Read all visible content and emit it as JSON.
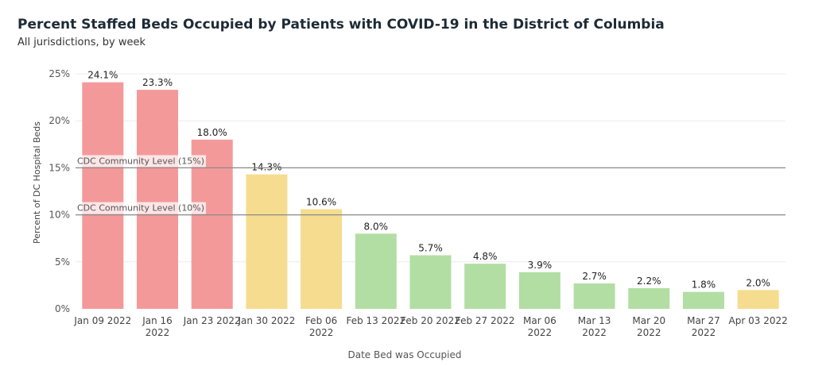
{
  "header": {
    "title": "Percent Staffed Beds Occupied by Patients with COVID-19 in the District of Columbia",
    "subtitle": "All jurisdictions, by week"
  },
  "chart_data": {
    "type": "bar",
    "title": "Percent Staffed Beds Occupied by Patients with COVID-19 in the District of Columbia",
    "subtitle": "All jurisdictions, by week",
    "xlabel": "Date Bed was Occupied",
    "ylabel": "Percent of DC Hospital Beds",
    "ylim": [
      0,
      25
    ],
    "yticks": [
      "0%",
      "5%",
      "10%",
      "15%",
      "20%",
      "25%"
    ],
    "ytick_values": [
      0,
      5,
      10,
      15,
      20,
      25
    ],
    "grid": true,
    "categories": [
      [
        "Jan 09 2022"
      ],
      [
        "Jan 16",
        "2022"
      ],
      [
        "Jan 23 2022"
      ],
      [
        "Jan 30 2022"
      ],
      [
        "Feb 06",
        "2022"
      ],
      [
        "Feb 13 2022"
      ],
      [
        "Feb 20 2022"
      ],
      [
        "Feb 27 2022"
      ],
      [
        "Mar 06",
        "2022"
      ],
      [
        "Mar 13",
        "2022"
      ],
      [
        "Mar 20",
        "2022"
      ],
      [
        "Mar 27",
        "2022"
      ],
      [
        "Apr 03 2022"
      ]
    ],
    "values": [
      24.1,
      23.3,
      18.0,
      14.3,
      10.6,
      8.0,
      5.7,
      4.8,
      3.9,
      2.7,
      2.2,
      1.8,
      2.0
    ],
    "data_labels": [
      "24.1%",
      "23.3%",
      "18.0%",
      "14.3%",
      "10.6%",
      "8.0%",
      "5.7%",
      "4.8%",
      "3.9%",
      "2.7%",
      "2.2%",
      "1.8%",
      "2.0%"
    ],
    "bar_colors": [
      "#f4999a",
      "#f4999a",
      "#f4999a",
      "#f5dc8e",
      "#f5dc8e",
      "#b2dea3",
      "#b2dea3",
      "#b2dea3",
      "#b2dea3",
      "#b2dea3",
      "#b2dea3",
      "#b2dea3",
      "#f5dc8e"
    ],
    "reference_lines": [
      {
        "value": 15,
        "label": "CDC Community Level (15%)"
      },
      {
        "value": 10,
        "label": "CDC Community Level (10%)"
      }
    ],
    "colors": {
      "high": "#f4999a",
      "medium": "#f5dc8e",
      "low": "#b2dea3",
      "refline": "#8a8a8a"
    }
  }
}
